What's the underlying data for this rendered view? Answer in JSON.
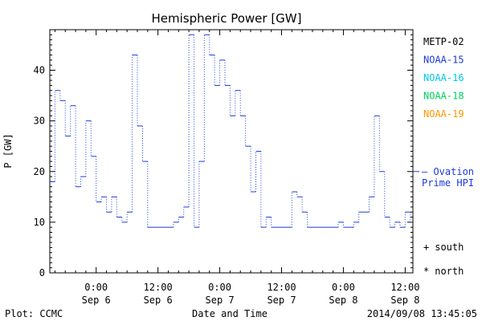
{
  "chart_data": {
    "type": "line",
    "title": "Hemispheric Power [GW]",
    "ylabel": "P [GW]",
    "xlabel": "Date and Time",
    "ylim": [
      0,
      48
    ],
    "yticks": [
      0,
      10,
      20,
      30,
      40
    ],
    "xlim": [
      "2014-09-05T15:00",
      "2014-09-08T13:30"
    ],
    "xticks": [
      {
        "t": "2014-09-06T00:00",
        "time": "0:00",
        "date": "Sep 6"
      },
      {
        "t": "2014-09-06T12:00",
        "time": "12:00",
        "date": "Sep 6"
      },
      {
        "t": "2014-09-07T00:00",
        "time": "0:00",
        "date": "Sep 7"
      },
      {
        "t": "2014-09-07T12:00",
        "time": "12:00",
        "date": "Sep 7"
      },
      {
        "t": "2014-09-08T00:00",
        "time": "0:00",
        "date": "Sep 8"
      },
      {
        "t": "2014-09-08T12:00",
        "time": "12:00",
        "date": "Sep 8"
      }
    ],
    "legend": [
      {
        "name": "METP-02",
        "color": "#000000"
      },
      {
        "name": "NOAA-15",
        "color": "#1e3ad6"
      },
      {
        "name": "NOAA-16",
        "color": "#00c8e6"
      },
      {
        "name": "NOAA-18",
        "color": "#00d060"
      },
      {
        "name": "NOAA-19",
        "color": "#ff9600"
      }
    ],
    "ovation": {
      "value": 20,
      "label_line1": "— Ovation",
      "label_line2": "Prime HPI",
      "color": "#1e3ad6"
    },
    "markers_legend": [
      {
        "symbol": "+",
        "label": "south"
      },
      {
        "symbol": "*",
        "label": "north"
      }
    ],
    "series": [
      {
        "name": "NOAA-15",
        "color": "#1e3ad6",
        "x": [
          "2014-09-05T15:00",
          "2014-09-05T16:00",
          "2014-09-05T17:00",
          "2014-09-05T18:00",
          "2014-09-05T19:00",
          "2014-09-05T20:00",
          "2014-09-05T21:00",
          "2014-09-05T22:00",
          "2014-09-05T23:00",
          "2014-09-06T00:00",
          "2014-09-06T01:00",
          "2014-09-06T02:00",
          "2014-09-06T03:00",
          "2014-09-06T04:00",
          "2014-09-06T05:00",
          "2014-09-06T06:00",
          "2014-09-06T07:00",
          "2014-09-06T08:00",
          "2014-09-06T09:00",
          "2014-09-06T10:00",
          "2014-09-06T11:00",
          "2014-09-06T12:00",
          "2014-09-06T13:00",
          "2014-09-06T14:00",
          "2014-09-06T15:00",
          "2014-09-06T16:00",
          "2014-09-06T17:00",
          "2014-09-06T18:00",
          "2014-09-06T19:00",
          "2014-09-06T20:00",
          "2014-09-06T21:00",
          "2014-09-06T22:00",
          "2014-09-06T23:00",
          "2014-09-07T00:00",
          "2014-09-07T01:00",
          "2014-09-07T02:00",
          "2014-09-07T03:00",
          "2014-09-07T04:00",
          "2014-09-07T05:00",
          "2014-09-07T06:00",
          "2014-09-07T07:00",
          "2014-09-07T08:00",
          "2014-09-07T09:00",
          "2014-09-07T10:00",
          "2014-09-07T11:00",
          "2014-09-07T12:00",
          "2014-09-07T13:00",
          "2014-09-07T14:00",
          "2014-09-07T15:00",
          "2014-09-07T16:00",
          "2014-09-07T17:00",
          "2014-09-07T18:00",
          "2014-09-07T19:00",
          "2014-09-07T20:00",
          "2014-09-07T21:00",
          "2014-09-07T22:00",
          "2014-09-07T23:00",
          "2014-09-08T00:00",
          "2014-09-08T01:00",
          "2014-09-08T02:00",
          "2014-09-08T03:00",
          "2014-09-08T04:00",
          "2014-09-08T05:00",
          "2014-09-08T06:00",
          "2014-09-08T07:00",
          "2014-09-08T08:00",
          "2014-09-08T09:00",
          "2014-09-08T10:00",
          "2014-09-08T11:00",
          "2014-09-08T12:00",
          "2014-09-08T13:00"
        ],
        "y": [
          18,
          36,
          34,
          27,
          33,
          17,
          19,
          30,
          23,
          14,
          15,
          12,
          15,
          11,
          10,
          12,
          43,
          29,
          22,
          9,
          9,
          9,
          9,
          9,
          10,
          11,
          13,
          47,
          9,
          22,
          47,
          43,
          37,
          42,
          37,
          31,
          36,
          31,
          25,
          16,
          24,
          9,
          11,
          9,
          9,
          9,
          9,
          16,
          15,
          12,
          9,
          9,
          9,
          9,
          9,
          9,
          10,
          9,
          9,
          10,
          12,
          12,
          15,
          31,
          20,
          11,
          9,
          10,
          9,
          12,
          10
        ]
      }
    ]
  },
  "footer": {
    "left": "Plot: CCMC",
    "center": "Date and Time",
    "right": "2014/09/08 13:45:05"
  }
}
